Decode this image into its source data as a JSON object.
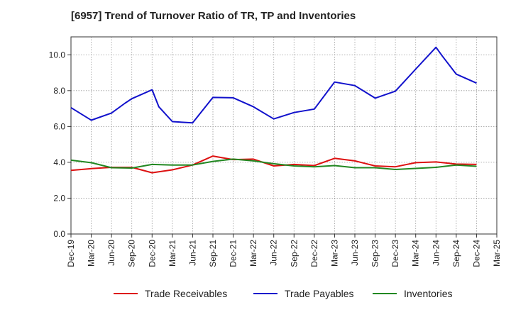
{
  "chart_data": {
    "type": "line",
    "title": "[6957]  Trend of Turnover Ratio of TR, TP and Inventories",
    "xlabel": "",
    "ylabel": "",
    "ylim": [
      0,
      11
    ],
    "yticks": [
      "0.0",
      "2.0",
      "4.0",
      "6.0",
      "8.0",
      "10.0"
    ],
    "ytick_values": [
      0,
      2,
      4,
      6,
      8,
      10
    ],
    "grid": true,
    "legend_position": "bottom",
    "x": [
      "Dec-19",
      "Jan-20",
      "Feb-20",
      "Mar-20",
      "Apr-20",
      "May-20",
      "Jun-20",
      "Jul-20",
      "Aug-20",
      "Sep-20",
      "Oct-20",
      "Nov-20",
      "Dec-20",
      "Jan-21",
      "Feb-21",
      "Mar-21",
      "Apr-21",
      "May-21",
      "Jun-21",
      "Jul-21",
      "Aug-21",
      "Sep-21",
      "Oct-21",
      "Nov-21",
      "Dec-21",
      "Jan-22",
      "Feb-22",
      "Mar-22",
      "Apr-22",
      "May-22",
      "Jun-22",
      "Jul-22",
      "Aug-22",
      "Sep-22",
      "Oct-22",
      "Nov-22",
      "Dec-22",
      "Jan-23",
      "Feb-23",
      "Mar-23",
      "Apr-23",
      "May-23",
      "Jun-23",
      "Jul-23",
      "Aug-23",
      "Sep-23",
      "Oct-23",
      "Nov-23",
      "Dec-23",
      "Jan-24",
      "Feb-24",
      "Mar-24",
      "Apr-24",
      "May-24",
      "Jun-24",
      "Jul-24",
      "Aug-24",
      "Sep-24",
      "Oct-24",
      "Nov-24",
      "Dec-24",
      "Jan-25",
      "Feb-25",
      "Mar-25"
    ],
    "xtick_labels": [
      "Dec-19",
      "Mar-20",
      "Jun-20",
      "Sep-20",
      "Dec-20",
      "Mar-21",
      "Jun-21",
      "Sep-21",
      "Dec-21",
      "Mar-22",
      "Jun-22",
      "Sep-22",
      "Dec-22",
      "Mar-23",
      "Jun-23",
      "Sep-23",
      "Dec-23",
      "Mar-24",
      "Jun-24",
      "Sep-24",
      "Dec-24",
      "Mar-25"
    ],
    "series": [
      {
        "name": "Trade Receivables",
        "color": "#dd1111",
        "points": [
          [
            "Dec-19",
            3.55
          ],
          [
            "Mar-20",
            3.65
          ],
          [
            "Jun-20",
            3.72
          ],
          [
            "Sep-20",
            3.72
          ],
          [
            "Dec-20",
            3.42
          ],
          [
            "Mar-21",
            3.58
          ],
          [
            "Jun-21",
            3.85
          ],
          [
            "Sep-21",
            4.35
          ],
          [
            "Dec-21",
            4.15
          ],
          [
            "Mar-22",
            4.18
          ],
          [
            "Jun-22",
            3.8
          ],
          [
            "Sep-22",
            3.88
          ],
          [
            "Dec-22",
            3.82
          ],
          [
            "Mar-23",
            4.22
          ],
          [
            "Jun-23",
            4.08
          ],
          [
            "Sep-23",
            3.8
          ],
          [
            "Dec-23",
            3.75
          ],
          [
            "Mar-24",
            3.98
          ],
          [
            "Jun-24",
            4.02
          ],
          [
            "Sep-24",
            3.9
          ],
          [
            "Dec-24",
            3.88
          ]
        ]
      },
      {
        "name": "Trade Payables",
        "color": "#1111cc",
        "points": [
          [
            "Dec-19",
            7.05
          ],
          [
            "Mar-20",
            6.35
          ],
          [
            "Jun-20",
            6.75
          ],
          [
            "Aug-20",
            7.3
          ],
          [
            "Sep-20",
            7.55
          ],
          [
            "Dec-20",
            8.05
          ],
          [
            "Jan-21",
            7.1
          ],
          [
            "Mar-21",
            6.27
          ],
          [
            "Jun-21",
            6.2
          ],
          [
            "Sep-21",
            7.62
          ],
          [
            "Dec-21",
            7.6
          ],
          [
            "Mar-22",
            7.1
          ],
          [
            "Jun-22",
            6.42
          ],
          [
            "Sep-22",
            6.78
          ],
          [
            "Dec-22",
            6.97
          ],
          [
            "Mar-23",
            8.48
          ],
          [
            "Jun-23",
            8.28
          ],
          [
            "Sep-23",
            7.58
          ],
          [
            "Dec-23",
            7.97
          ],
          [
            "Mar-24",
            9.2
          ],
          [
            "Jun-24",
            10.42
          ],
          [
            "Jul-24",
            9.9
          ],
          [
            "Sep-24",
            8.92
          ],
          [
            "Dec-24",
            8.42
          ]
        ]
      },
      {
        "name": "Inventories",
        "color": "#228822",
        "points": [
          [
            "Dec-19",
            4.12
          ],
          [
            "Mar-20",
            3.98
          ],
          [
            "Jun-20",
            3.7
          ],
          [
            "Sep-20",
            3.68
          ],
          [
            "Dec-20",
            3.88
          ],
          [
            "Mar-21",
            3.85
          ],
          [
            "Jun-21",
            3.85
          ],
          [
            "Sep-21",
            4.05
          ],
          [
            "Dec-21",
            4.18
          ],
          [
            "Mar-22",
            4.08
          ],
          [
            "Jun-22",
            3.92
          ],
          [
            "Sep-22",
            3.8
          ],
          [
            "Dec-22",
            3.75
          ],
          [
            "Mar-23",
            3.82
          ],
          [
            "Jun-23",
            3.7
          ],
          [
            "Sep-23",
            3.7
          ],
          [
            "Dec-23",
            3.6
          ],
          [
            "Mar-24",
            3.66
          ],
          [
            "Jun-24",
            3.72
          ],
          [
            "Sep-24",
            3.85
          ],
          [
            "Dec-24",
            3.78
          ]
        ]
      }
    ]
  }
}
